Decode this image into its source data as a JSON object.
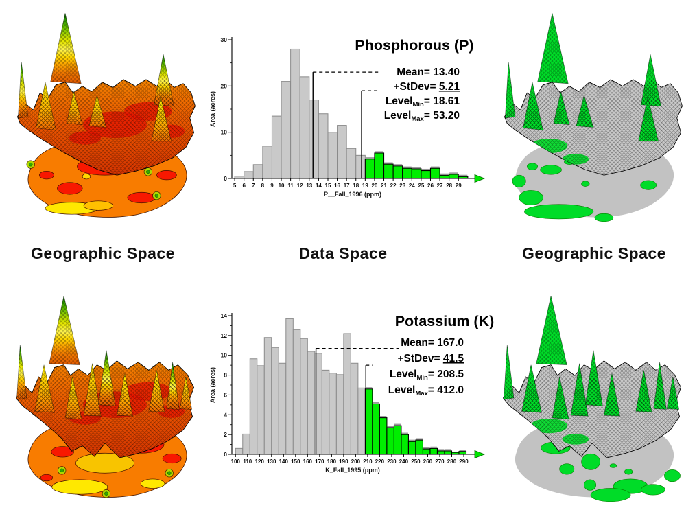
{
  "labels": {
    "geographic_left": "Geographic Space",
    "data_space": "Data Space",
    "geographic_right": "Geographic Space"
  },
  "palette": {
    "highlight_green": "#00EE00",
    "bar_gray": "#C9C9C9",
    "bar_gray_edge": "#8A8A8A",
    "surface_gray": "#C8C8C8",
    "contour_orange": "#F87C00",
    "contour_red": "#F81800",
    "contour_yellow": "#FFE800",
    "arrow_green": "#00E400",
    "axis_black": "#000000"
  },
  "surfaces": {
    "top_left": {
      "kind": "3d-surface-with-contour-base",
      "scheme": "color",
      "variable": "Phosphorous"
    },
    "top_right": {
      "kind": "3d-surface-with-contour-base",
      "scheme": "gray-green-classified",
      "variable": "Phosphorous"
    },
    "bottom_left": {
      "kind": "3d-surface-with-contour-base",
      "scheme": "color",
      "variable": "Potassium"
    },
    "bottom_right": {
      "kind": "3d-surface-with-contour-base",
      "scheme": "gray-green-classified",
      "variable": "Potassium"
    }
  },
  "chart_data": [
    {
      "id": "phosphorous",
      "type": "bar",
      "title": "Phosphorous (P)",
      "xlabel": "P__Fall_1996 (ppm)",
      "ylabel": "Area (acres)",
      "xlim": [
        4.7,
        30.6
      ],
      "ylim": [
        0,
        30
      ],
      "yticks": [
        0,
        10,
        20,
        30
      ],
      "y_minor_step": 5,
      "xticks": [
        5,
        6,
        7,
        8,
        9,
        10,
        11,
        12,
        13,
        14,
        15,
        16,
        17,
        18,
        19,
        20,
        21,
        22,
        23,
        24,
        25,
        26,
        27,
        28,
        29
      ],
      "bin_start": 5,
      "bin_width": 1,
      "values": [
        0.5,
        1.5,
        3,
        7,
        13.5,
        21,
        28,
        22,
        17,
        14,
        10,
        11.5,
        6.5,
        5,
        4.2,
        5.5,
        3.1,
        2.7,
        2.2,
        2.1,
        1.7,
        2.2,
        0.7,
        0.9,
        0.4
      ],
      "threshold": 18.61,
      "stats": [
        {
          "label": "Mean",
          "sub": "",
          "value": "13.40",
          "underline": false
        },
        {
          "label": "+StDev",
          "sub": "",
          "value": "5.21",
          "underline": true
        },
        {
          "label": "Level",
          "sub": "Min",
          "value": "18.61",
          "underline": false
        },
        {
          "label": "Level",
          "sub": "Max",
          "value": "53.20",
          "underline": false
        }
      ],
      "mean_line": {
        "x": 13.4,
        "top": 23,
        "dash_to": 20.5
      },
      "level_line": {
        "x": 18.61,
        "top": 19,
        "dash_to": 20.3
      },
      "layout": {
        "title_cx": 302,
        "title_y": 43,
        "stats_x": 368,
        "stats_y": 80,
        "stats_dy": 21
      },
      "colors": {
        "below": "#C9C9C9",
        "below_edge": "#8A8A8A",
        "above": "#00EE00",
        "above_edge": "#000000",
        "arrow": "#00E400"
      }
    },
    {
      "id": "potassium",
      "type": "bar",
      "title": "Potassium (K)",
      "xlabel": "K_Fall_1995 (ppm)",
      "ylabel": "Area (acres)",
      "xlim": [
        97,
        298
      ],
      "ylim": [
        0,
        14
      ],
      "yticks": [
        0,
        2,
        4,
        6,
        8,
        10,
        12,
        14
      ],
      "y_minor_step": 1,
      "xticks": [
        100,
        110,
        120,
        130,
        140,
        150,
        160,
        170,
        180,
        190,
        200,
        210,
        220,
        230,
        240,
        250,
        260,
        270,
        280,
        290
      ],
      "bin_start": 100,
      "bin_width": 6,
      "values": [
        0.6,
        2.05,
        9.65,
        8.95,
        11.8,
        10.8,
        9.2,
        13.7,
        12.6,
        11.7,
        10.4,
        10.2,
        8.5,
        8.2,
        8.05,
        12.2,
        9.2,
        6.7,
        6.6,
        5.1,
        3.7,
        2.7,
        2.9,
        2.0,
        1.3,
        1.45,
        0.55,
        0.6,
        0.35,
        0.35,
        0.2,
        0.3
      ],
      "threshold": 208.5,
      "stats": [
        {
          "label": "Mean",
          "sub": "",
          "value": "167.0",
          "underline": false
        },
        {
          "label": "+StDev",
          "sub": "",
          "value": "41.5",
          "underline": true
        },
        {
          "label": "Level",
          "sub": "Min",
          "value": "208.5",
          "underline": false
        },
        {
          "label": "Level",
          "sub": "Max",
          "value": "412.0",
          "underline": false
        }
      ],
      "mean_line": {
        "x": 167,
        "top": 10.7,
        "dash_to": 236
      },
      "level_line": {
        "x": 208.5,
        "top": 9.0,
        "dash_to": 214
      },
      "layout": {
        "title_cx": 346,
        "title_y": 43,
        "stats_x": 374,
        "stats_y": 72,
        "stats_dy": 23
      },
      "colors": {
        "below": "#C9C9C9",
        "below_edge": "#8A8A8A",
        "above": "#00EE00",
        "above_edge": "#000000",
        "arrow": "#00E400"
      }
    }
  ]
}
